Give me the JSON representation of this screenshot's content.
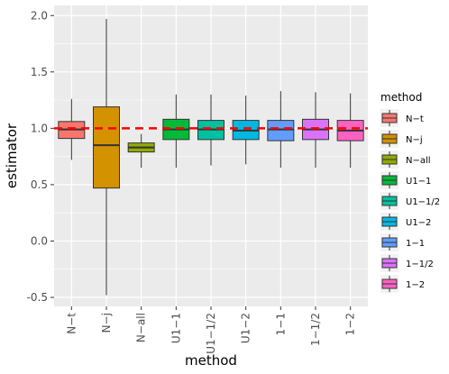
{
  "chart_data": {
    "type": "boxplot",
    "xlabel": "method",
    "ylabel": "estimator",
    "ylim": [
      -0.58,
      2.09
    ],
    "yticks": [
      -0.5,
      0.0,
      0.5,
      1.0,
      1.5,
      2.0
    ],
    "ytick_labels": [
      "-0.5",
      "0.0",
      "0.5",
      "1.0",
      "1.5",
      "2.0"
    ],
    "categories": [
      "N−t",
      "N−j",
      "N−all",
      "U1−1",
      "U1−1/2",
      "U1−2",
      "1−1",
      "1−1/2",
      "1−2"
    ],
    "boxes": [
      {
        "name": "N−t",
        "whisker_low": 0.72,
        "q1": 0.91,
        "median": 0.99,
        "q3": 1.06,
        "whisker_high": 1.26,
        "color": "#F8766D"
      },
      {
        "name": "N−j",
        "whisker_low": -0.48,
        "q1": 0.47,
        "median": 0.85,
        "q3": 1.19,
        "whisker_high": 1.97,
        "color": "#D39200"
      },
      {
        "name": "N−all",
        "whisker_low": 0.65,
        "q1": 0.79,
        "median": 0.83,
        "q3": 0.87,
        "whisker_high": 0.95,
        "color": "#93AA00"
      },
      {
        "name": "U1−1",
        "whisker_low": 0.65,
        "q1": 0.9,
        "median": 0.99,
        "q3": 1.08,
        "whisker_high": 1.3,
        "color": "#00BA38"
      },
      {
        "name": "U1−1/2",
        "whisker_low": 0.67,
        "q1": 0.9,
        "median": 0.99,
        "q3": 1.07,
        "whisker_high": 1.3,
        "color": "#00C19F"
      },
      {
        "name": "U1−2",
        "whisker_low": 0.68,
        "q1": 0.9,
        "median": 0.98,
        "q3": 1.07,
        "whisker_high": 1.29,
        "color": "#00B9E3"
      },
      {
        "name": "1−1",
        "whisker_low": 0.65,
        "q1": 0.89,
        "median": 0.99,
        "q3": 1.07,
        "whisker_high": 1.33,
        "color": "#619CFF"
      },
      {
        "name": "1−1/2",
        "whisker_low": 0.65,
        "q1": 0.9,
        "median": 0.99,
        "q3": 1.08,
        "whisker_high": 1.32,
        "color": "#DB72FB"
      },
      {
        "name": "1−2",
        "whisker_low": 0.65,
        "q1": 0.89,
        "median": 0.98,
        "q3": 1.07,
        "whisker_high": 1.31,
        "color": "#FF61C3"
      }
    ],
    "reference_line": {
      "y": 1.0,
      "style": "dashed",
      "color": "#FF0000"
    },
    "grid": true,
    "panel_background": "#EBEBEB",
    "gridline_color": "#FFFFFF",
    "legend": {
      "title": "method",
      "position": "right",
      "items": [
        "N−t",
        "N−j",
        "N−all",
        "U1−1",
        "U1−1/2",
        "U1−2",
        "1−1",
        "1−1/2",
        "1−2"
      ]
    }
  }
}
